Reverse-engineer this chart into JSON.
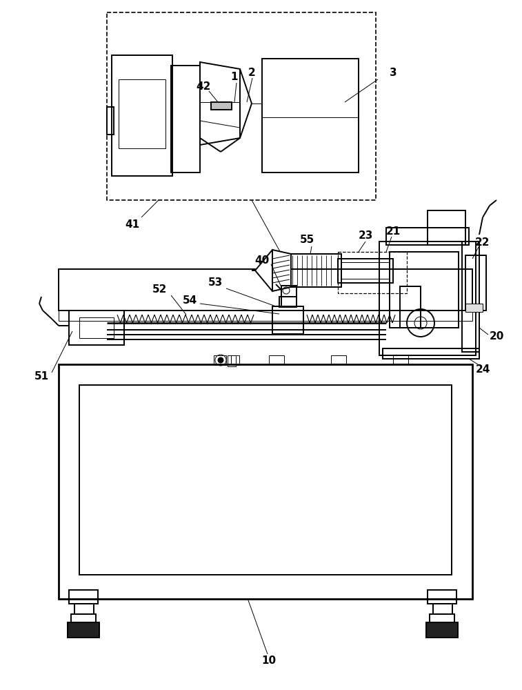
{
  "bg_color": "#ffffff",
  "line_color": "#000000",
  "lw": 1.4,
  "tlw": 0.7,
  "blw": 2.0
}
